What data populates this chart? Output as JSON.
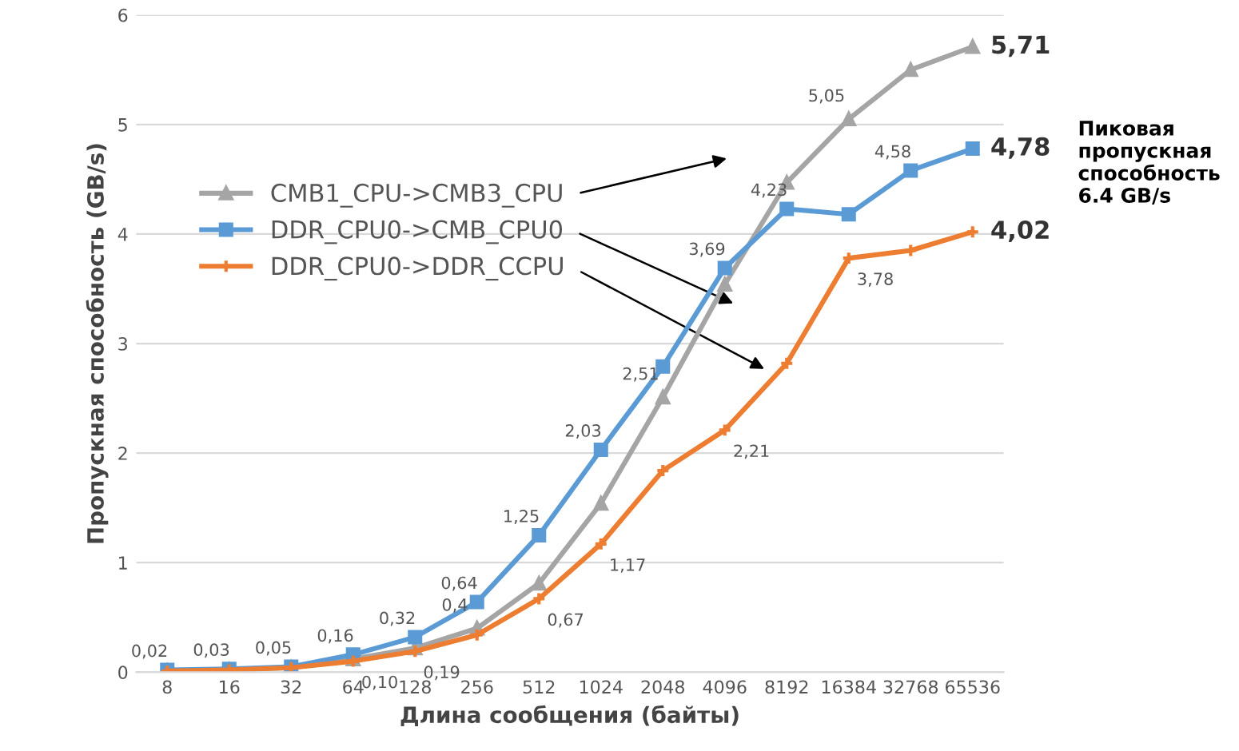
{
  "chart_data": {
    "type": "line",
    "xlabel": "Длина сообщения (байты)",
    "ylabel": "Пропускная способность (GB/s)",
    "categories": [
      "8",
      "16",
      "32",
      "64",
      "128",
      "256",
      "512",
      "1024",
      "2048",
      "4096",
      "8192",
      "16384",
      "32768",
      "65536"
    ],
    "series": [
      {
        "name": "CMB1_CPU->CMB3_CPU",
        "color": "#a5a5a5",
        "marker": "triangle",
        "values": [
          0.01,
          0.02,
          0.04,
          0.12,
          0.22,
          0.4,
          0.81,
          1.54,
          2.51,
          3.54,
          4.47,
          5.05,
          5.5,
          5.71
        ],
        "value_labels": [
          null,
          null,
          null,
          null,
          null,
          "0,4",
          null,
          null,
          "2,51",
          null,
          null,
          "5,05",
          null,
          "5,71"
        ]
      },
      {
        "name": "DDR_CPU0->CMB_CPU0",
        "color": "#5b9bd5",
        "marker": "square",
        "values": [
          0.02,
          0.03,
          0.05,
          0.16,
          0.32,
          0.64,
          1.25,
          2.03,
          2.79,
          3.69,
          4.23,
          4.18,
          4.58,
          4.78
        ],
        "value_labels": [
          "0,02",
          "0,03",
          "0,05",
          "0,16",
          "0,32",
          "0,64",
          "1,25",
          "2,03",
          null,
          "3,69",
          "4,23",
          null,
          "4,58",
          "4,78"
        ]
      },
      {
        "name": "DDR_CPU0->DDR_CCPU",
        "color": "#ed7d31",
        "marker": "cross",
        "values": [
          0.01,
          0.02,
          0.04,
          0.1,
          0.19,
          0.34,
          0.67,
          1.17,
          1.84,
          2.21,
          2.82,
          3.78,
          3.85,
          4.02
        ],
        "value_labels": [
          null,
          null,
          null,
          "0,10",
          "0,19",
          null,
          "0,67",
          "1,17",
          null,
          "2,21",
          null,
          "3,78",
          null,
          "4,02"
        ]
      }
    ],
    "ylim": [
      0,
      6
    ],
    "yticks": [
      0,
      1,
      2,
      3,
      4,
      5,
      6
    ],
    "grid": "y",
    "legend": "left",
    "annotations": [
      "Пиковая пропускная способность 6.4 GB/s"
    ]
  }
}
